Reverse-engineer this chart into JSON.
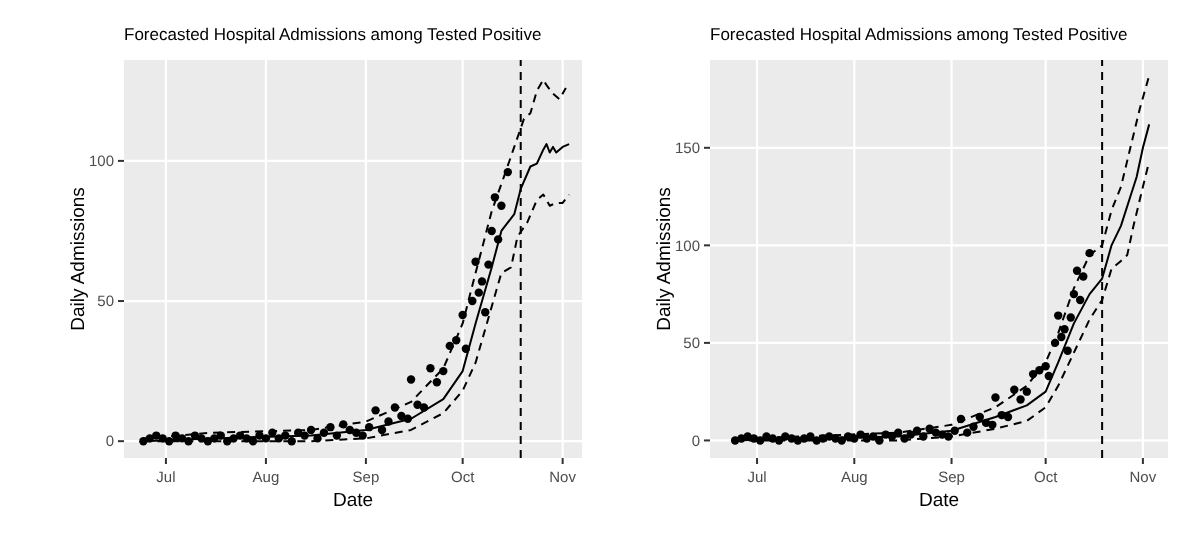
{
  "chart_data": [
    {
      "type": "scatter",
      "title": "Forecasted Hospital Admissions among Tested Positive",
      "xlabel": "Date",
      "ylabel": "Daily Admissions",
      "grid": true,
      "xlim": [
        "--06-18",
        "--11-07"
      ],
      "xticks": [
        {
          "value": "--07-01",
          "label": "Jul"
        },
        {
          "value": "--08-01",
          "label": "Aug"
        },
        {
          "value": "--09-01",
          "label": "Sep"
        },
        {
          "value": "--10-01",
          "label": "Oct"
        },
        {
          "value": "--11-01",
          "label": "Nov"
        }
      ],
      "ylim": [
        -6,
        136
      ],
      "yticks": [
        0,
        50,
        100
      ],
      "ref_lines": [
        {
          "axis": "x",
          "value": "--10-19",
          "line_style": "dashed",
          "color": "#000000"
        }
      ],
      "series": [
        {
          "type": "scatter",
          "marker": "circle",
          "color": "#000000",
          "x": [
            "--06-24",
            "--06-26",
            "--06-28",
            "--06-30",
            "--07-02",
            "--07-04",
            "--07-06",
            "--07-08",
            "--07-10",
            "--07-12",
            "--07-14",
            "--07-16",
            "--07-18",
            "--07-20",
            "--07-22",
            "--07-24",
            "--07-26",
            "--07-28",
            "--07-30",
            "--08-01",
            "--08-03",
            "--08-05",
            "--08-07",
            "--08-09",
            "--08-11",
            "--08-13",
            "--08-15",
            "--08-17",
            "--08-19",
            "--08-21",
            "--08-23",
            "--08-25",
            "--08-27",
            "--08-29",
            "--08-31",
            "--09-02",
            "--09-04",
            "--09-06",
            "--09-08",
            "--09-10",
            "--09-12",
            "--09-14",
            "--09-15",
            "--09-17",
            "--09-19",
            "--09-21",
            "--09-23",
            "--09-25",
            "--09-27",
            "--09-29",
            "--10-01",
            "--10-02",
            "--10-04",
            "--10-05",
            "--10-06",
            "--10-07",
            "--10-08",
            "--10-09",
            "--10-10",
            "--10-11",
            "--10-12",
            "--10-13",
            "--10-15"
          ],
          "values": [
            0,
            1,
            2,
            1,
            0,
            2,
            1,
            0,
            2,
            1,
            0,
            1,
            2,
            0,
            1,
            2,
            1,
            0,
            2,
            1,
            3,
            1,
            2,
            0,
            3,
            2,
            4,
            1,
            3,
            5,
            2,
            6,
            4,
            3,
            2,
            5,
            11,
            4,
            7,
            12,
            9,
            8,
            22,
            13,
            12,
            26,
            21,
            25,
            34,
            36,
            45,
            33,
            50,
            64,
            53,
            57,
            46,
            63,
            75,
            87,
            72,
            84,
            96
          ]
        },
        {
          "type": "line",
          "line_style": "solid",
          "color": "#000000",
          "x": [
            "--06-24",
            "--07-15",
            "--08-15",
            "--09-01",
            "--09-15",
            "--09-25",
            "--10-01",
            "--10-05",
            "--10-10",
            "--10-13",
            "--10-17",
            "--10-19",
            "--10-22",
            "--10-24",
            "--10-26",
            "--10-27",
            "--10-28",
            "--10-29",
            "--10-30",
            "--11-01",
            "--11-03"
          ],
          "values": [
            0,
            1,
            2,
            4,
            8,
            15,
            25,
            42,
            62,
            75,
            81,
            90,
            98,
            99,
            104,
            106,
            103,
            105,
            103,
            105,
            106
          ]
        },
        {
          "type": "line",
          "line_style": "dashed",
          "color": "#000000",
          "x": [
            "--06-24",
            "--07-15",
            "--08-15",
            "--09-01",
            "--09-15",
            "--09-25",
            "--10-01",
            "--10-05",
            "--10-10",
            "--10-14",
            "--10-17",
            "--10-20",
            "--10-22",
            "--10-24",
            "--10-26",
            "--10-27",
            "--10-29",
            "--10-31",
            "--11-02"
          ],
          "values": [
            1,
            3,
            4,
            7,
            14,
            26,
            42,
            60,
            82,
            95,
            105,
            115,
            117,
            125,
            129,
            127,
            124,
            122,
            126
          ]
        },
        {
          "type": "line",
          "line_style": "dashed",
          "color": "#000000",
          "x": [
            "--06-24",
            "--07-15",
            "--08-15",
            "--09-01",
            "--09-15",
            "--09-25",
            "--10-01",
            "--10-05",
            "--10-10",
            "--10-13",
            "--10-16",
            "--10-18",
            "--10-21",
            "--10-24",
            "--10-26",
            "--10-28",
            "--10-30",
            "--11-01",
            "--11-03"
          ],
          "values": [
            0,
            0,
            0,
            1,
            4,
            10,
            18,
            28,
            48,
            60,
            62,
            73,
            78,
            86,
            88,
            84,
            85,
            85,
            88
          ]
        }
      ]
    },
    {
      "type": "scatter",
      "title": "Forecasted Hospital Admissions among Tested Positive",
      "xlabel": "Date",
      "ylabel": "Daily Admissions",
      "grid": true,
      "xlim": [
        "--06-16",
        "--11-09"
      ],
      "xticks": [
        {
          "value": "--07-01",
          "label": "Jul"
        },
        {
          "value": "--08-01",
          "label": "Aug"
        },
        {
          "value": "--09-01",
          "label": "Sep"
        },
        {
          "value": "--10-01",
          "label": "Oct"
        },
        {
          "value": "--11-01",
          "label": "Nov"
        }
      ],
      "ylim": [
        -9,
        195
      ],
      "yticks": [
        0,
        50,
        100,
        150
      ],
      "ref_lines": [
        {
          "axis": "x",
          "value": "--10-19",
          "line_style": "dashed",
          "color": "#000000"
        }
      ],
      "series": [
        {
          "type": "scatter",
          "marker": "circle",
          "color": "#000000",
          "x": [
            "--06-24",
            "--06-26",
            "--06-28",
            "--06-30",
            "--07-02",
            "--07-04",
            "--07-06",
            "--07-08",
            "--07-10",
            "--07-12",
            "--07-14",
            "--07-16",
            "--07-18",
            "--07-20",
            "--07-22",
            "--07-24",
            "--07-26",
            "--07-28",
            "--07-30",
            "--08-01",
            "--08-03",
            "--08-05",
            "--08-07",
            "--08-09",
            "--08-11",
            "--08-13",
            "--08-15",
            "--08-17",
            "--08-19",
            "--08-21",
            "--08-23",
            "--08-25",
            "--08-27",
            "--08-29",
            "--08-31",
            "--09-02",
            "--09-04",
            "--09-06",
            "--09-08",
            "--09-10",
            "--09-12",
            "--09-14",
            "--09-15",
            "--09-17",
            "--09-19",
            "--09-21",
            "--09-23",
            "--09-25",
            "--09-27",
            "--09-29",
            "--10-01",
            "--10-02",
            "--10-04",
            "--10-05",
            "--10-06",
            "--10-07",
            "--10-08",
            "--10-09",
            "--10-10",
            "--10-11",
            "--10-12",
            "--10-13",
            "--10-15"
          ],
          "values": [
            0,
            1,
            2,
            1,
            0,
            2,
            1,
            0,
            2,
            1,
            0,
            1,
            2,
            0,
            1,
            2,
            1,
            0,
            2,
            1,
            3,
            1,
            2,
            0,
            3,
            2,
            4,
            1,
            3,
            5,
            2,
            6,
            4,
            3,
            2,
            5,
            11,
            4,
            7,
            12,
            9,
            8,
            22,
            13,
            12,
            26,
            21,
            25,
            34,
            36,
            38,
            33,
            50,
            64,
            53,
            57,
            46,
            63,
            75,
            87,
            72,
            84,
            96
          ]
        },
        {
          "type": "line",
          "line_style": "solid",
          "color": "#000000",
          "x": [
            "--06-24",
            "--07-15",
            "--08-15",
            "--09-01",
            "--09-15",
            "--09-25",
            "--10-01",
            "--10-05",
            "--10-10",
            "--10-15",
            "--10-19",
            "--10-22",
            "--10-25",
            "--10-28",
            "--10-30",
            "--11-01",
            "--11-03"
          ],
          "values": [
            0,
            1,
            2,
            5,
            12,
            18,
            25,
            40,
            60,
            75,
            83,
            100,
            110,
            125,
            135,
            150,
            162
          ]
        },
        {
          "type": "line",
          "line_style": "dashed",
          "color": "#000000",
          "x": [
            "--06-24",
            "--07-15",
            "--08-15",
            "--09-01",
            "--09-15",
            "--09-25",
            "--10-01",
            "--10-05",
            "--10-10",
            "--10-15",
            "--10-19",
            "--10-22",
            "--10-25",
            "--10-28",
            "--10-31",
            "--11-03"
          ],
          "values": [
            1,
            2,
            4,
            8,
            17,
            28,
            40,
            55,
            78,
            95,
            100,
            118,
            130,
            150,
            170,
            187
          ]
        },
        {
          "type": "line",
          "line_style": "dashed",
          "color": "#000000",
          "x": [
            "--06-24",
            "--07-15",
            "--08-15",
            "--09-01",
            "--09-15",
            "--09-25",
            "--10-01",
            "--10-05",
            "--10-10",
            "--10-15",
            "--10-19",
            "--10-22",
            "--10-25",
            "--10-27",
            "--10-29",
            "--11-01",
            "--11-03"
          ],
          "values": [
            0,
            0,
            0,
            2,
            6,
            10,
            17,
            28,
            45,
            62,
            72,
            88,
            92,
            95,
            110,
            130,
            143
          ]
        }
      ]
    }
  ]
}
